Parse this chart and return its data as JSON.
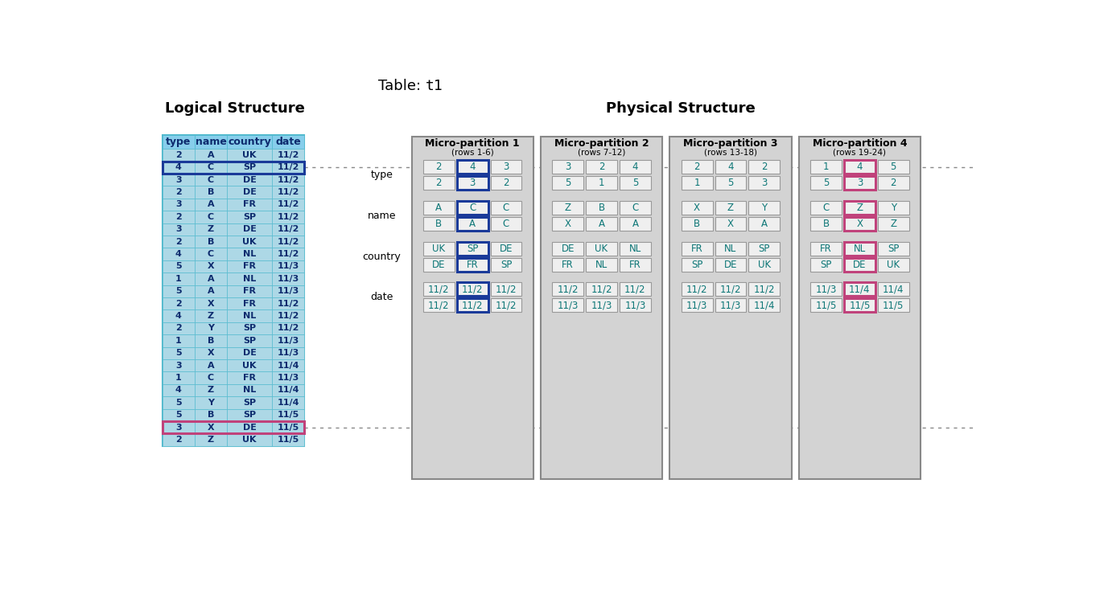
{
  "title_normal": "Table: ",
  "title_mono": "t1",
  "logical_title": "Logical Structure",
  "physical_title": "Physical Structure",
  "logical_headers": [
    "type",
    "name",
    "country",
    "date"
  ],
  "logical_rows": [
    [
      "2",
      "A",
      "UK",
      "11/2"
    ],
    [
      "4",
      "C",
      "SP",
      "11/2"
    ],
    [
      "3",
      "C",
      "DE",
      "11/2"
    ],
    [
      "2",
      "B",
      "DE",
      "11/2"
    ],
    [
      "3",
      "A",
      "FR",
      "11/2"
    ],
    [
      "2",
      "C",
      "SP",
      "11/2"
    ],
    [
      "3",
      "Z",
      "DE",
      "11/2"
    ],
    [
      "2",
      "B",
      "UK",
      "11/2"
    ],
    [
      "4",
      "C",
      "NL",
      "11/2"
    ],
    [
      "5",
      "X",
      "FR",
      "11/3"
    ],
    [
      "1",
      "A",
      "NL",
      "11/3"
    ],
    [
      "5",
      "A",
      "FR",
      "11/3"
    ],
    [
      "2",
      "X",
      "FR",
      "11/2"
    ],
    [
      "4",
      "Z",
      "NL",
      "11/2"
    ],
    [
      "2",
      "Y",
      "SP",
      "11/2"
    ],
    [
      "1",
      "B",
      "SP",
      "11/3"
    ],
    [
      "5",
      "X",
      "DE",
      "11/3"
    ],
    [
      "3",
      "A",
      "UK",
      "11/4"
    ],
    [
      "1",
      "C",
      "FR",
      "11/3"
    ],
    [
      "4",
      "Z",
      "NL",
      "11/4"
    ],
    [
      "5",
      "Y",
      "SP",
      "11/4"
    ],
    [
      "5",
      "B",
      "SP",
      "11/5"
    ],
    [
      "3",
      "X",
      "DE",
      "11/5"
    ],
    [
      "2",
      "Z",
      "UK",
      "11/5"
    ]
  ],
  "blue_highlight_row": 1,
  "pink_highlight_row": 22,
  "partitions": [
    {
      "title": "Micro-partition 1",
      "subtitle": "(rows 1-6)",
      "type_rows": [
        [
          "2",
          "4",
          "3"
        ],
        [
          "2",
          "3",
          "2"
        ]
      ],
      "name_rows": [
        [
          "A",
          "C",
          "C"
        ],
        [
          "B",
          "A",
          "C"
        ]
      ],
      "country_rows": [
        [
          "UK",
          "SP",
          "DE"
        ],
        [
          "DE",
          "FR",
          "SP"
        ]
      ],
      "date_rows": [
        [
          "11/2",
          "11/2",
          "11/2"
        ],
        [
          "11/2",
          "11/2",
          "11/2"
        ]
      ],
      "has_blue": true,
      "has_pink": false
    },
    {
      "title": "Micro-partition 2",
      "subtitle": "(rows 7-12)",
      "type_rows": [
        [
          "3",
          "2",
          "4"
        ],
        [
          "5",
          "1",
          "5"
        ]
      ],
      "name_rows": [
        [
          "Z",
          "B",
          "C"
        ],
        [
          "X",
          "A",
          "A"
        ]
      ],
      "country_rows": [
        [
          "DE",
          "UK",
          "NL"
        ],
        [
          "FR",
          "NL",
          "FR"
        ]
      ],
      "date_rows": [
        [
          "11/2",
          "11/2",
          "11/2"
        ],
        [
          "11/3",
          "11/3",
          "11/3"
        ]
      ],
      "has_blue": false,
      "has_pink": false
    },
    {
      "title": "Micro-partition 3",
      "subtitle": "(rows 13-18)",
      "type_rows": [
        [
          "2",
          "4",
          "2"
        ],
        [
          "1",
          "5",
          "3"
        ]
      ],
      "name_rows": [
        [
          "X",
          "Z",
          "Y"
        ],
        [
          "B",
          "X",
          "A"
        ]
      ],
      "country_rows": [
        [
          "FR",
          "NL",
          "SP"
        ],
        [
          "SP",
          "DE",
          "UK"
        ]
      ],
      "date_rows": [
        [
          "11/2",
          "11/2",
          "11/2"
        ],
        [
          "11/3",
          "11/3",
          "11/4"
        ]
      ],
      "has_blue": false,
      "has_pink": false
    },
    {
      "title": "Micro-partition 4",
      "subtitle": "(rows 19-24)",
      "type_rows": [
        [
          "1",
          "4",
          "5"
        ],
        [
          "5",
          "3",
          "2"
        ]
      ],
      "name_rows": [
        [
          "C",
          "Z",
          "Y"
        ],
        [
          "B",
          "X",
          "Z"
        ]
      ],
      "country_rows": [
        [
          "FR",
          "NL",
          "SP"
        ],
        [
          "SP",
          "DE",
          "UK"
        ]
      ],
      "date_rows": [
        [
          "11/3",
          "11/4",
          "11/4"
        ],
        [
          "11/5",
          "11/5",
          "11/5"
        ]
      ],
      "has_blue": false,
      "has_pink": true
    }
  ],
  "cell_bg_light": "#ADD8E6",
  "cell_bg_header": "#87CEEB",
  "partition_bg": "#D3D3D3",
  "partition_cell_bg": "#EFEFEF",
  "blue_color": "#1a3a99",
  "pink_color": "#C0427B",
  "text_dark": "#0d2b6e",
  "partition_text": "#0d7777"
}
